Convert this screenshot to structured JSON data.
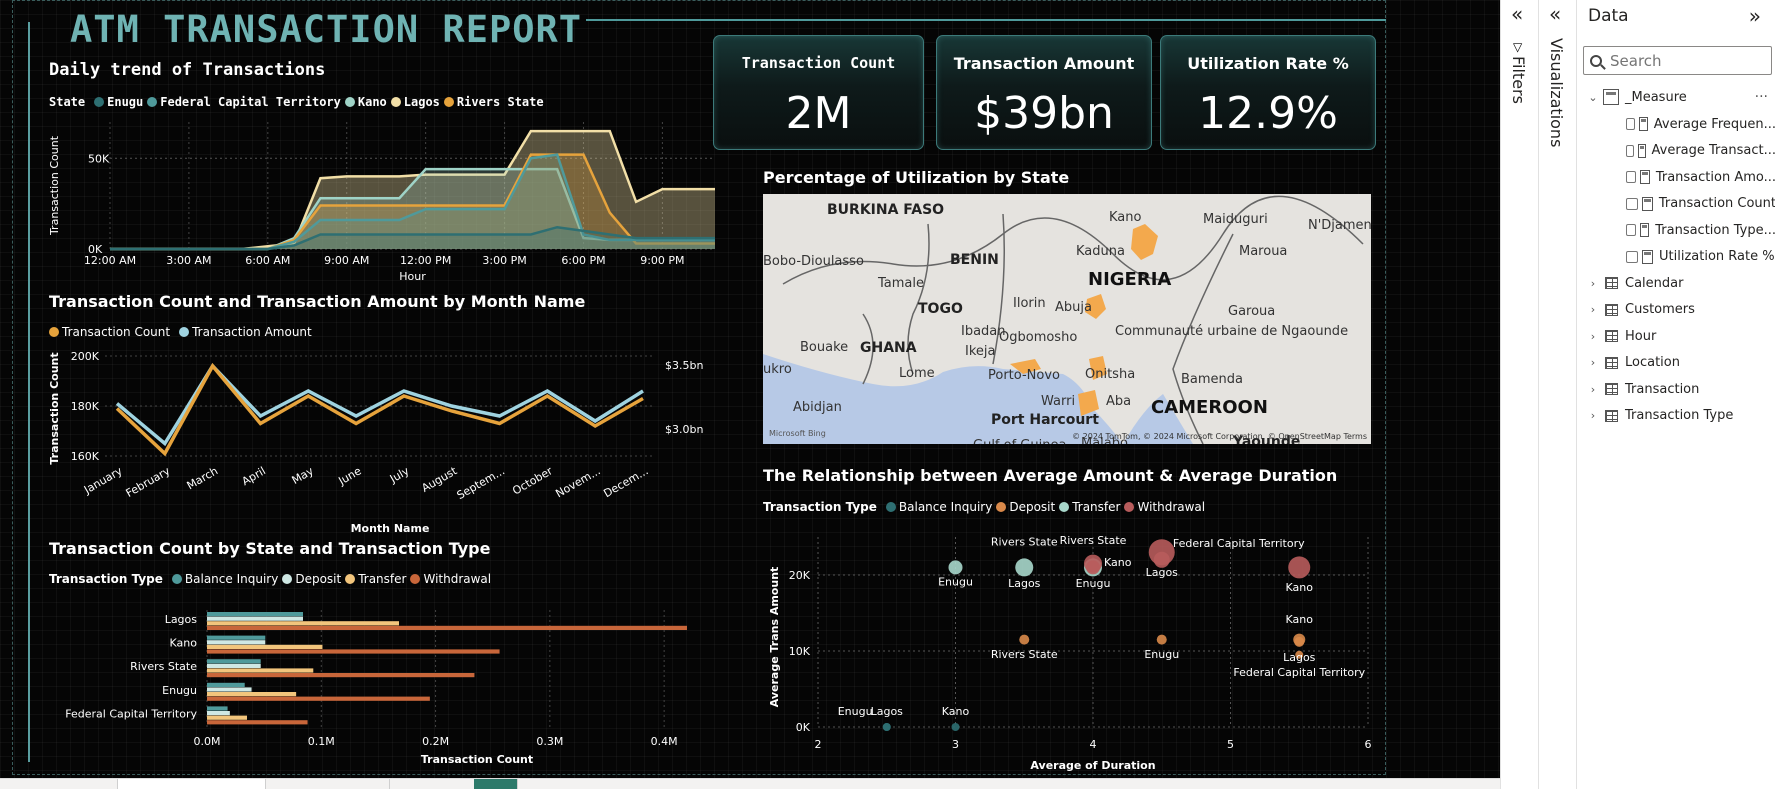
{
  "report": {
    "title": "ATM TRANSACTION REPORT"
  },
  "cards": [
    {
      "title": "Transaction Count",
      "value": "2M"
    },
    {
      "title": "Transaction Amount",
      "value": "$39bn"
    },
    {
      "title": "Utilization Rate %",
      "value": "12.9%"
    }
  ],
  "daily_trend": {
    "title": "Daily trend of Transactions",
    "legend_title": "State",
    "colors": {
      "Enugu": "#2e6f72",
      "Federal Capital Territory": "#4f9a9b",
      "Kano": "#9fd3c7",
      "Lagos": "#f2dfa7",
      "Rivers State": "#e6a33c"
    }
  },
  "month_chart": {
    "title": "Transaction Count and Transaction Amount by Month Name",
    "colors": {
      "Transaction Count": "#e6a33c",
      "Transaction Amount": "#9fd3e0"
    }
  },
  "state_type_chart": {
    "title": "Transaction Count by State and Transaction Type",
    "legend_title": "Transaction Type",
    "colors": {
      "Balance Inquiry": "#4f9a9b",
      "Deposit": "#cfe8e4",
      "Transfer": "#f2c57c",
      "Withdrawal": "#c8663a"
    }
  },
  "map": {
    "title": "Percentage of Utilization by State",
    "labels": [
      "BURKINA FASO",
      "Bobo-Dioulasso",
      "BENIN",
      "Tamale",
      "TOGO",
      "GHANA",
      "Bouake",
      "ukro",
      "Abidjan",
      "Lome",
      "Ibadan",
      "Ikeja",
      "Porto-Novo",
      "Ogbomosho",
      "Ilorin",
      "Abuja",
      "Kaduna",
      "Kano",
      "NIGERIA",
      "Maiduguri",
      "N'Djamen",
      "Maroua",
      "Garoua",
      "Communauté urbaine de Ngaounde",
      "Onitsha",
      "Warri",
      "Aba",
      "Port Harcourt",
      "Bamenda",
      "CAMEROON",
      "Yaounde",
      "Malabo",
      "Gulf of Guinea"
    ],
    "copyright": "© 2024 TomTom, © 2024 Microsoft Corporation, © OpenStreetMap  Terms",
    "provider": "Microsoft Bing"
  },
  "scatter": {
    "title": "The Relationship between Average Amount & Average Duration",
    "legend_title": "Transaction Type",
    "colors": {
      "Balance Inquiry": "#2e6f72",
      "Deposit": "#d9894a",
      "Transfer": "#a9d8cc",
      "Withdrawal": "#b85c5c"
    }
  },
  "chart_data": [
    {
      "type": "area",
      "title": "Daily trend of Transactions",
      "xlabel": "Hour",
      "ylabel": "Transaction Count",
      "x_ticks": [
        "12:00 AM",
        "3:00 AM",
        "6:00 AM",
        "9:00 AM",
        "12:00 PM",
        "3:00 PM",
        "6:00 PM",
        "9:00 PM"
      ],
      "y_ticks": [
        "0K",
        "50K"
      ],
      "ylim": [
        0,
        70000
      ],
      "x": [
        0,
        1,
        2,
        3,
        4,
        5,
        6,
        7,
        8,
        9,
        10,
        11,
        12,
        13,
        14,
        15,
        16,
        17,
        18,
        19,
        20,
        21,
        22,
        23
      ],
      "series": [
        {
          "name": "Enugu",
          "values": [
            0,
            0,
            0,
            0,
            0,
            0,
            0,
            2000,
            8000,
            8000,
            8000,
            8000,
            8000,
            8000,
            8000,
            8000,
            8000,
            12000,
            10000,
            8000,
            6000,
            6000,
            6000,
            6000
          ]
        },
        {
          "name": "Federal Capital Territory",
          "values": [
            0,
            0,
            0,
            0,
            0,
            0,
            0,
            4000,
            16000,
            16000,
            16000,
            16000,
            22000,
            22000,
            22000,
            22000,
            50000,
            52000,
            8000,
            5000,
            5000,
            5000,
            5000,
            5000
          ]
        },
        {
          "name": "Kano",
          "values": [
            0,
            0,
            0,
            0,
            0,
            0,
            0,
            6000,
            28000,
            28000,
            28000,
            28000,
            44000,
            44000,
            44000,
            44000,
            44000,
            44000,
            6000,
            5000,
            5000,
            5000,
            5000,
            5000
          ]
        },
        {
          "name": "Lagos",
          "values": [
            0,
            0,
            0,
            0,
            0,
            0,
            1500,
            3000,
            39000,
            40000,
            40000,
            40000,
            41000,
            41000,
            41000,
            41000,
            65000,
            65000,
            65000,
            65000,
            26000,
            33000,
            33000,
            33000
          ]
        },
        {
          "name": "Rivers State",
          "values": [
            0,
            0,
            0,
            0,
            0,
            0,
            0,
            5000,
            24000,
            24000,
            24000,
            24000,
            24000,
            24000,
            24000,
            24000,
            52000,
            52000,
            52000,
            20000,
            3000,
            3000,
            3000,
            3000
          ]
        }
      ]
    },
    {
      "type": "line",
      "title": "Transaction Count and Transaction Amount by Month Name",
      "xlabel": "Month Name",
      "ylabel": "Transaction Count",
      "ylabel2": "Transaction Amount",
      "categories": [
        "January",
        "February",
        "March",
        "April",
        "May",
        "June",
        "July",
        "August",
        "Septem...",
        "October",
        "Novem...",
        "Decem..."
      ],
      "y_ticks": [
        "160K",
        "180K",
        "200K"
      ],
      "y2_ticks": [
        "$3.0bn",
        "$3.5bn"
      ],
      "ylim": [
        160000,
        200000
      ],
      "series": [
        {
          "name": "Transaction Count",
          "values": [
            179000,
            161000,
            196000,
            173000,
            184000,
            173000,
            184000,
            178000,
            173000,
            184000,
            172000,
            183000
          ]
        },
        {
          "name": "Transaction Amount",
          "values": [
            181000,
            165000,
            196000,
            176000,
            186000,
            176000,
            186000,
            180000,
            176000,
            186000,
            174000,
            186000
          ]
        }
      ]
    },
    {
      "type": "bar",
      "orientation": "horizontal",
      "title": "Transaction Count by State and Transaction Type",
      "xlabel": "Transaction Count",
      "categories": [
        "Lagos",
        "Kano",
        "Rivers State",
        "Enugu",
        "Federal Capital Territory"
      ],
      "x_ticks": [
        "0.0M",
        "0.1M",
        "0.2M",
        "0.3M",
        "0.4M"
      ],
      "xlim": [
        0,
        0.42
      ],
      "series": [
        {
          "name": "Balance Inquiry",
          "values": [
            0.084,
            0.051,
            0.047,
            0.033,
            0.018
          ]
        },
        {
          "name": "Deposit",
          "values": [
            0.084,
            0.051,
            0.047,
            0.039,
            0.02
          ]
        },
        {
          "name": "Transfer",
          "values": [
            0.168,
            0.101,
            0.093,
            0.078,
            0.035
          ]
        },
        {
          "name": "Withdrawal",
          "values": [
            0.42,
            0.256,
            0.234,
            0.195,
            0.088
          ]
        }
      ]
    },
    {
      "type": "scatter",
      "title": "The Relationship between Average Amount & Average Duration",
      "xlabel": "Average of Duration",
      "ylabel": "Average Trans Amount",
      "x_ticks": [
        "2",
        "3",
        "4",
        "5",
        "6"
      ],
      "y_ticks": [
        "0K",
        "10K",
        "20K"
      ],
      "xlim": [
        2,
        6
      ],
      "ylim": [
        0,
        25000
      ],
      "series": [
        {
          "name": "Balance Inquiry",
          "points": [
            {
              "label": "Enugu",
              "x": 2.5,
              "y": 0,
              "size": 4
            },
            {
              "label": "Lagos",
              "x": 2.5,
              "y": 0,
              "size": 4
            },
            {
              "label": "Kano",
              "x": 3.0,
              "y": 0,
              "size": 4
            }
          ]
        },
        {
          "name": "Deposit",
          "points": [
            {
              "label": "Rivers State",
              "x": 3.5,
              "y": 11500,
              "size": 5
            },
            {
              "label": "Enugu",
              "x": 4.5,
              "y": 11500,
              "size": 5
            },
            {
              "label": "Kano",
              "x": 5.5,
              "y": 11500,
              "size": 6
            },
            {
              "label": "Lagos",
              "x": 5.5,
              "y": 11200,
              "size": 5
            },
            {
              "label": "Federal Capital Territory",
              "x": 5.5,
              "y": 9500,
              "size": 4
            }
          ]
        },
        {
          "name": "Transfer",
          "points": [
            {
              "label": "Enugu",
              "x": 3.0,
              "y": 21000,
              "size": 7
            },
            {
              "label": "Rivers State",
              "x": 3.5,
              "y": 21000,
              "size": 9
            },
            {
              "label": "Lagos",
              "x": 3.5,
              "y": 21000,
              "size": 0
            },
            {
              "label": "Enugu",
              "x": 4.0,
              "y": 21000,
              "size": 9
            }
          ]
        },
        {
          "name": "Withdrawal",
          "points": [
            {
              "label": "Rivers State",
              "x": 4.0,
              "y": 21500,
              "size": 9
            },
            {
              "label": "Kano",
              "x": 4.0,
              "y": 21000,
              "size": 7
            },
            {
              "label": "Federal Capital Territory",
              "x": 4.5,
              "y": 23000,
              "size": 13
            },
            {
              "label": "Lagos",
              "x": 4.5,
              "y": 22000,
              "size": 8
            },
            {
              "label": "Kano",
              "x": 5.5,
              "y": 21000,
              "size": 11
            }
          ]
        }
      ]
    }
  ],
  "panes": {
    "filters_label": "Filters",
    "visualizations_label": "Visualizations",
    "data_title": "Data",
    "search_placeholder": "Search",
    "measure_table": "_Measure",
    "measures": [
      "Average Frequen...",
      "Average Transact...",
      "Transaction Amo...",
      "Transaction Count",
      "Transaction Type...",
      "Utilization Rate %"
    ],
    "tables": [
      "Calendar",
      "Customers",
      "Hour",
      "Location",
      "Transaction",
      "Transaction Type"
    ]
  }
}
